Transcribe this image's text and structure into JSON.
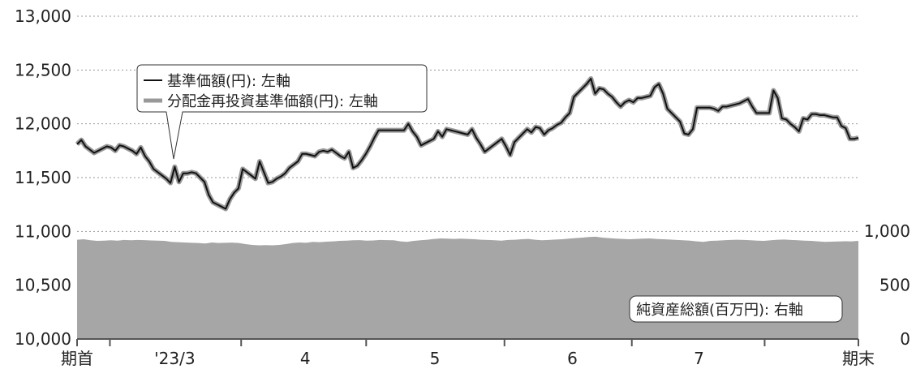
{
  "chart_data": {
    "type": "line",
    "left_axis": {
      "ticks": [
        10000,
        10500,
        11000,
        11500,
        12000,
        12500,
        13000
      ],
      "tick_labels": [
        "10,000",
        "10,500",
        "11,000",
        "11,500",
        "12,000",
        "12,500",
        "13,000"
      ],
      "range": [
        10000,
        13000
      ]
    },
    "right_axis": {
      "ticks": [
        0,
        500,
        1000
      ],
      "tick_labels": [
        "0",
        "500",
        "1,000"
      ],
      "range": [
        0,
        1000
      ]
    },
    "x_labels": [
      {
        "text": "期首",
        "pos": 0.0
      },
      {
        "text": "'23/3",
        "pos": 0.125
      },
      {
        "text": "4",
        "pos": 0.292
      },
      {
        "text": "5",
        "pos": 0.458
      },
      {
        "text": "6",
        "pos": 0.634
      },
      {
        "text": "7",
        "pos": 0.796
      },
      {
        "text": "期末",
        "pos": 1.0
      }
    ],
    "x_ticks": [
      0.0,
      0.042,
      0.21,
      0.37,
      0.547,
      0.71,
      0.88,
      1.0
    ],
    "legend": {
      "nav_label": "基準価額(円): 左軸",
      "reinvested_label": "分配金再投資基準価額(円): 左軸"
    },
    "net_assets_label": "純資産総額(百万円): 右軸",
    "series": [
      {
        "name": "基準価額(円)",
        "axis": "left",
        "color": "#111111",
        "values": [
          11810,
          11850,
          11790,
          11760,
          11730,
          11750,
          11770,
          11790,
          11780,
          11750,
          11800,
          11790,
          11770,
          11750,
          11720,
          11780,
          11700,
          11650,
          11580,
          11550,
          11520,
          11490,
          11450,
          11600,
          11460,
          11540,
          11540,
          11550,
          11540,
          11500,
          11460,
          11340,
          11270,
          11250,
          11230,
          11210,
          11300,
          11360,
          11400,
          11580,
          11550,
          11520,
          11490,
          11650,
          11550,
          11450,
          11460,
          11490,
          11510,
          11540,
          11590,
          11620,
          11650,
          11720,
          11720,
          11710,
          11700,
          11740,
          11750,
          11740,
          11760,
          11730,
          11700,
          11680,
          11740,
          11590,
          11610,
          11660,
          11720,
          11790,
          11870,
          11940,
          11940,
          11940,
          11940,
          11940,
          11940,
          11940,
          12000,
          11930,
          11880,
          11800,
          11820,
          11840,
          11860,
          11930,
          11880,
          11950,
          11940,
          11930,
          11920,
          11910,
          11900,
          11950,
          11870,
          11810,
          11740,
          11770,
          11800,
          11830,
          11860,
          11790,
          11710,
          11830,
          11870,
          11910,
          11950,
          11920,
          11970,
          11960,
          11900,
          11940,
          11960,
          11990,
          12010,
          12060,
          12100,
          12250,
          12290,
          12330,
          12370,
          12420,
          12280,
          12330,
          12320,
          12280,
          12250,
          12200,
          12160,
          12200,
          12220,
          12200,
          12240,
          12240,
          12250,
          12260,
          12340,
          12370,
          12280,
          12140,
          12100,
          12060,
          12020,
          11910,
          11900,
          11950,
          12150,
          12150,
          12150,
          12150,
          12140,
          12120,
          12160,
          12160,
          12170,
          12180,
          12190,
          12210,
          12230,
          12160,
          12100,
          12100,
          12100,
          12100,
          12310,
          12240,
          12050,
          12040,
          12000,
          11970,
          11930,
          12050,
          12040,
          12090,
          12090,
          12080,
          12080,
          12070,
          12060,
          12060,
          11980,
          11960,
          11860,
          11860,
          11870
        ]
      },
      {
        "name": "分配金再投資基準価額(円)",
        "axis": "left",
        "color": "#999999",
        "values": [
          11810,
          11850,
          11790,
          11760,
          11730,
          11750,
          11770,
          11790,
          11780,
          11750,
          11800,
          11790,
          11770,
          11750,
          11720,
          11780,
          11700,
          11650,
          11580,
          11550,
          11520,
          11490,
          11450,
          11600,
          11460,
          11540,
          11540,
          11550,
          11540,
          11500,
          11460,
          11340,
          11270,
          11250,
          11230,
          11210,
          11300,
          11360,
          11400,
          11580,
          11550,
          11520,
          11490,
          11650,
          11550,
          11450,
          11460,
          11490,
          11510,
          11540,
          11590,
          11620,
          11650,
          11720,
          11720,
          11710,
          11700,
          11740,
          11750,
          11740,
          11760,
          11730,
          11700,
          11680,
          11740,
          11590,
          11610,
          11660,
          11720,
          11790,
          11870,
          11940,
          11940,
          11940,
          11940,
          11940,
          11940,
          11940,
          12000,
          11930,
          11880,
          11800,
          11820,
          11840,
          11860,
          11930,
          11880,
          11950,
          11940,
          11930,
          11920,
          11910,
          11900,
          11950,
          11870,
          11810,
          11740,
          11770,
          11800,
          11830,
          11860,
          11790,
          11710,
          11830,
          11870,
          11910,
          11950,
          11920,
          11970,
          11960,
          11900,
          11940,
          11960,
          11990,
          12010,
          12060,
          12100,
          12250,
          12290,
          12330,
          12370,
          12420,
          12280,
          12330,
          12320,
          12280,
          12250,
          12200,
          12160,
          12200,
          12220,
          12200,
          12240,
          12240,
          12250,
          12260,
          12340,
          12370,
          12280,
          12140,
          12100,
          12060,
          12020,
          11910,
          11900,
          11950,
          12150,
          12150,
          12150,
          12150,
          12140,
          12120,
          12160,
          12160,
          12170,
          12180,
          12190,
          12210,
          12230,
          12160,
          12100,
          12100,
          12100,
          12100,
          12310,
          12240,
          12050,
          12040,
          12000,
          11970,
          11930,
          12050,
          12040,
          12090,
          12090,
          12080,
          12080,
          12070,
          12060,
          12060,
          11980,
          11960,
          11860,
          11860,
          11870
        ]
      },
      {
        "name": "純資産総額(百万円)",
        "axis": "right",
        "type": "area",
        "color": "#a6a6a6",
        "values": [
          920,
          925,
          915,
          910,
          912,
          915,
          912,
          918,
          915,
          918,
          916,
          914,
          912,
          910,
          900,
          898,
          895,
          892,
          890,
          885,
          895,
          890,
          892,
          894,
          890,
          880,
          872,
          868,
          870,
          868,
          872,
          880,
          890,
          895,
          892,
          900,
          898,
          902,
          905,
          910,
          912,
          915,
          916,
          912,
          914,
          918,
          916,
          915,
          905,
          900,
          910,
          915,
          920,
          928,
          932,
          930,
          928,
          930,
          928,
          925,
          920,
          918,
          915,
          912,
          918,
          920,
          925,
          928,
          920,
          915,
          918,
          922,
          925,
          930,
          935,
          940,
          945,
          948,
          940,
          935,
          930,
          928,
          925,
          928,
          930,
          932,
          928,
          925,
          922,
          918,
          915,
          912,
          905,
          900,
          910,
          912,
          915,
          918,
          920,
          918,
          915,
          912,
          910,
          915,
          920,
          922,
          918,
          915,
          912,
          910,
          905,
          900,
          902,
          904,
          906,
          905,
          910
        ]
      }
    ]
  }
}
